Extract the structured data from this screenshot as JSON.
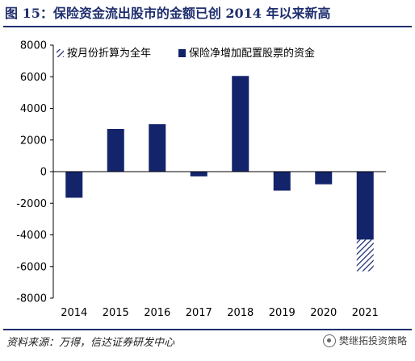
{
  "figure": {
    "title": "图 15：保险资金流出股市的金额已创 2014 年以来新高",
    "source": "资料来源：万得，信达证券研发中心",
    "watermark": "樊继拓投资策略"
  },
  "colors": {
    "accent": "#1f2f6e",
    "bar": "#13246b"
  },
  "chart_data": {
    "type": "bar",
    "title": "",
    "xlabel": "",
    "ylabel": "",
    "categories": [
      "2014",
      "2015",
      "2016",
      "2017",
      "2018",
      "2019",
      "2020",
      "2021"
    ],
    "ylim": [
      -8000,
      8000
    ],
    "yticks": [
      -8000,
      -6000,
      -4000,
      -2000,
      0,
      2000,
      4000,
      6000,
      8000
    ],
    "grid": false,
    "legend_position": "top",
    "stacked": true,
    "series": [
      {
        "name": "保险净增加配置股票的资金",
        "style": "solid",
        "values": [
          -1650,
          2700,
          3000,
          -300,
          6050,
          -1200,
          -800,
          -4300
        ]
      },
      {
        "name": "按月份折算为全年",
        "style": "hatched",
        "values": [
          0,
          0,
          0,
          0,
          0,
          0,
          0,
          -2000
        ]
      }
    ]
  }
}
